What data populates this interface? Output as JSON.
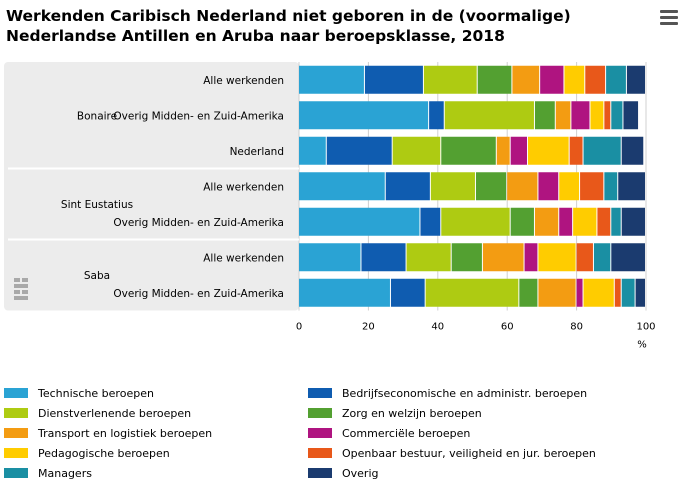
{
  "title_line1": "Werkenden Caribisch Nederland niet geboren in de (voormalige)",
  "title_line2": "Nederlandse Antillen en Aruba naar beroepsklasse, 2018",
  "menu_icon": "hamburger-menu-icon",
  "logo_icon": "cbs-logo-icon",
  "chart_data": {
    "type": "bar",
    "orientation": "horizontal",
    "stacked": true,
    "xlabel": "%",
    "xlim": [
      0,
      100
    ],
    "xticks": [
      "0",
      "20",
      "40",
      "60",
      "80",
      "100"
    ],
    "groups": [
      {
        "name": "Bonaire",
        "categories": [
          "Alle werkenden",
          "Overig Midden- en Zuid-Amerika",
          "Nederland"
        ]
      },
      {
        "name": "Sint Eustatius",
        "categories": [
          "Alle werkenden",
          "Overig Midden- en Zuid-Amerika"
        ]
      },
      {
        "name": "Saba",
        "categories": [
          "Alle werkenden",
          "Overig Midden- en Zuid-Amerika"
        ]
      }
    ],
    "categories": [
      "Alle werkenden",
      "Overig Midden- en Zuid-Amerika",
      "Nederland",
      "Alle werkenden",
      "Overig Midden- en Zuid-Amerika",
      "Alle werkenden",
      "Overig Midden- en Zuid-Amerika"
    ],
    "series": [
      {
        "name": "Technische beroepen",
        "color": "#2AA3D4",
        "values": [
          19,
          37.5,
          8,
          25,
          35,
          18,
          26.5
        ]
      },
      {
        "name": "Bedrijfseconomische en administr. beroepen",
        "color": "#0F5CB0",
        "values": [
          17,
          4.5,
          19,
          13,
          6,
          13,
          10
        ]
      },
      {
        "name": "Dienstverlenende beroepen",
        "color": "#AECB12",
        "values": [
          15.5,
          26,
          14,
          13,
          20,
          13,
          27
        ]
      },
      {
        "name": "Zorg en welzijn beroepen",
        "color": "#53A031",
        "values": [
          10,
          6,
          16,
          9,
          7,
          9,
          5.5
        ]
      },
      {
        "name": "Transport en logistiek beroepen",
        "color": "#F39C12",
        "values": [
          8,
          4.5,
          4,
          9,
          7,
          12,
          11
        ]
      },
      {
        "name": "Commerciële beroepen",
        "color": "#AF1480",
        "values": [
          7,
          5.5,
          5,
          6,
          4,
          4,
          2
        ]
      },
      {
        "name": "Pedagogische beroepen",
        "color": "#FFCC00",
        "values": [
          6,
          4,
          12,
          6,
          7,
          11,
          9
        ]
      },
      {
        "name": "Openbaar bestuur, veiligheid en jur. beroepen",
        "color": "#E8581A",
        "values": [
          6,
          2,
          4,
          7,
          4,
          5,
          2
        ]
      },
      {
        "name": "Managers",
        "color": "#1A8FA3",
        "values": [
          6,
          3.5,
          11,
          4,
          3,
          5,
          4
        ]
      },
      {
        "name": "Overig",
        "color": "#1B3B6F",
        "values": [
          5.5,
          4.5,
          6.5,
          8,
          7,
          10,
          3
        ]
      }
    ]
  }
}
